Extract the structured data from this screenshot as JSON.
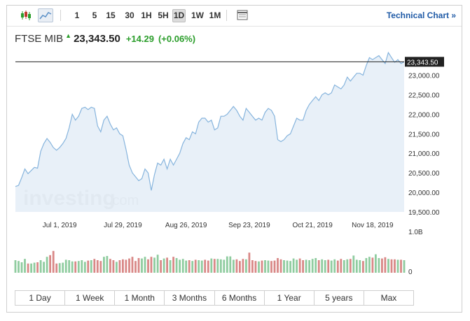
{
  "toolbar": {
    "chart_type_icons": [
      "candlestick-icon",
      "area-chart-icon"
    ],
    "timeframes": [
      "1",
      "5",
      "15",
      "30",
      "1H",
      "5H",
      "1D",
      "1W",
      "1M"
    ],
    "active_timeframe": "1D",
    "settings_icon": "table-icon",
    "technical_chart_label": "Technical Chart »"
  },
  "quote": {
    "name": "FTSE MIB",
    "price": "23,343.50",
    "change": "+14.29",
    "change_pct": "(+0.06%)"
  },
  "watermark": {
    "brand": "investing",
    "suffix": ".com"
  },
  "colors": {
    "line": "#86b4dd",
    "area": "#e6eef7",
    "up": "#8fcc9f",
    "down": "#d98887",
    "positive": "#2a9d2a"
  },
  "chart_data": {
    "type": "area",
    "title": "FTSE MIB",
    "current_value": 23343.5,
    "current_label": "23,343.50",
    "ylim": [
      19500,
      23350
    ],
    "yticks": [
      19500,
      20000,
      20500,
      21000,
      21500,
      22000,
      22500,
      23000
    ],
    "ytick_labels": [
      "19,500.00",
      "20,000.00",
      "20,500.00",
      "21,000.00",
      "21,500.00",
      "22,000.00",
      "22,500.00",
      "23,000.00"
    ],
    "x_labels": [
      "Jul 1, 2019",
      "Jul 29, 2019",
      "Aug 26, 2019",
      "Sep 23, 2019",
      "Oct 21, 2019",
      "Nov 18, 2019"
    ],
    "x_label_index": [
      14,
      34,
      54,
      74,
      94,
      113
    ],
    "values": [
      20150,
      20180,
      20380,
      20600,
      20480,
      20560,
      20640,
      20620,
      21050,
      21250,
      21380,
      21280,
      21150,
      21080,
      21150,
      21250,
      21380,
      21650,
      22000,
      21850,
      21950,
      22150,
      22180,
      22120,
      22180,
      22150,
      21700,
      21550,
      21850,
      21950,
      21750,
      21600,
      21650,
      21500,
      21450,
      21100,
      20700,
      20500,
      20400,
      20300,
      20350,
      20600,
      20500,
      20050,
      20450,
      20750,
      20700,
      20850,
      20600,
      20850,
      20700,
      20850,
      21000,
      21250,
      21400,
      21350,
      21550,
      21500,
      21800,
      21900,
      21900,
      21800,
      21850,
      21600,
      21650,
      21950,
      21950,
      22000,
      22100,
      22200,
      22100,
      21950,
      21850,
      22150,
      22050,
      21950,
      21850,
      21900,
      21850,
      22050,
      22150,
      22100,
      21950,
      21350,
      21300,
      21350,
      21450,
      21500,
      21700,
      21900,
      21850,
      21850,
      22100,
      22250,
      22350,
      22450,
      22350,
      22500,
      22550,
      22500,
      22550,
      22750,
      22700,
      22650,
      22750,
      22950,
      22850,
      22950,
      23050,
      23050,
      23000,
      23250,
      23450,
      23400,
      23450,
      23500,
      23400,
      23300,
      23580,
      23450,
      23330,
      23400,
      23300,
      23343
    ],
    "volume": {
      "max_label": "1.0B",
      "zero_label": "0",
      "max": 1000000000,
      "values": [
        0.3,
        0.28,
        0.25,
        0.33,
        0.22,
        0.22,
        0.24,
        0.25,
        0.3,
        0.26,
        0.38,
        0.42,
        0.52,
        0.22,
        0.23,
        0.24,
        0.31,
        0.3,
        0.27,
        0.27,
        0.28,
        0.3,
        0.26,
        0.29,
        0.3,
        0.33,
        0.3,
        0.28,
        0.38,
        0.4,
        0.33,
        0.3,
        0.26,
        0.3,
        0.32,
        0.31,
        0.34,
        0.38,
        0.28,
        0.35,
        0.34,
        0.38,
        0.32,
        0.38,
        0.36,
        0.43,
        0.3,
        0.34,
        0.36,
        0.3,
        0.38,
        0.35,
        0.31,
        0.33,
        0.29,
        0.3,
        0.28,
        0.31,
        0.3,
        0.29,
        0.31,
        0.29,
        0.34,
        0.33,
        0.33,
        0.32,
        0.31,
        0.39,
        0.39,
        0.31,
        0.32,
        0.28,
        0.33,
        0.32,
        0.48,
        0.3,
        0.28,
        0.27,
        0.29,
        0.3,
        0.29,
        0.28,
        0.29,
        0.35,
        0.32,
        0.3,
        0.29,
        0.28,
        0.34,
        0.31,
        0.34,
        0.3,
        0.31,
        0.3,
        0.33,
        0.35,
        0.3,
        0.32,
        0.3,
        0.31,
        0.29,
        0.32,
        0.29,
        0.33,
        0.3,
        0.32,
        0.33,
        0.41,
        0.31,
        0.3,
        0.28,
        0.35,
        0.38,
        0.36,
        0.44,
        0.35,
        0.34,
        0.37,
        0.33,
        0.32,
        0.32,
        0.31,
        0.31,
        0.3
      ],
      "direction": [
        1,
        1,
        1,
        1,
        0,
        1,
        1,
        0,
        1,
        1,
        1,
        0,
        0,
        0,
        1,
        1,
        1,
        1,
        1,
        0,
        1,
        1,
        1,
        0,
        1,
        0,
        0,
        0,
        1,
        1,
        0,
        0,
        1,
        0,
        0,
        0,
        0,
        0,
        0,
        0,
        1,
        1,
        0,
        0,
        1,
        1,
        0,
        1,
        0,
        1,
        0,
        1,
        1,
        1,
        1,
        0,
        1,
        0,
        1,
        1,
        0,
        0,
        1,
        0,
        1,
        1,
        1,
        1,
        1,
        1,
        0,
        0,
        0,
        1,
        0,
        0,
        0,
        1,
        0,
        1,
        1,
        0,
        0,
        0,
        0,
        1,
        1,
        1,
        1,
        1,
        0,
        0,
        1,
        1,
        1,
        1,
        0,
        1,
        1,
        0,
        1,
        1,
        0,
        0,
        1,
        1,
        0,
        1,
        1,
        1,
        0,
        1,
        1,
        0,
        1,
        1,
        0,
        0,
        1,
        0,
        0,
        1,
        0,
        1
      ]
    }
  },
  "ranges": [
    "1 Day",
    "1 Week",
    "1 Month",
    "3 Months",
    "6 Months",
    "1 Year",
    "5 years",
    "Max"
  ]
}
